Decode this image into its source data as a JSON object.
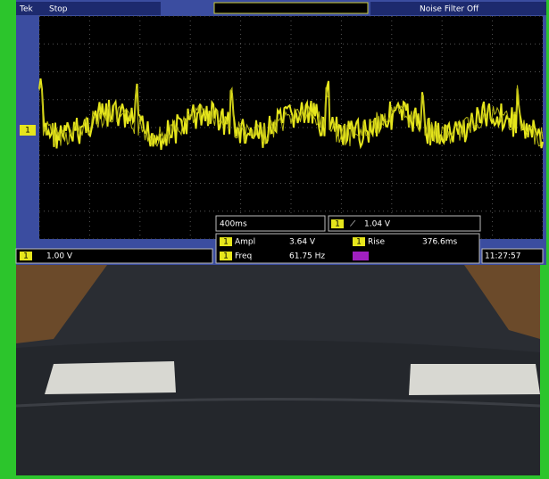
{
  "scope": {
    "brand": "Tek",
    "run_state": "Stop",
    "noise_filter": "Noise Filter Off",
    "channel": "1",
    "timebase": "400ms",
    "trigger_level": "1.04 V",
    "volts_per_div": "1.00 V",
    "time": "11:27:57",
    "measurements": [
      {
        "name": "Ampl",
        "value": "3.64 V"
      },
      {
        "name": "Rise",
        "value": "376.6ms"
      },
      {
        "name": "Freq",
        "value": "61.75 Hz"
      }
    ]
  }
}
